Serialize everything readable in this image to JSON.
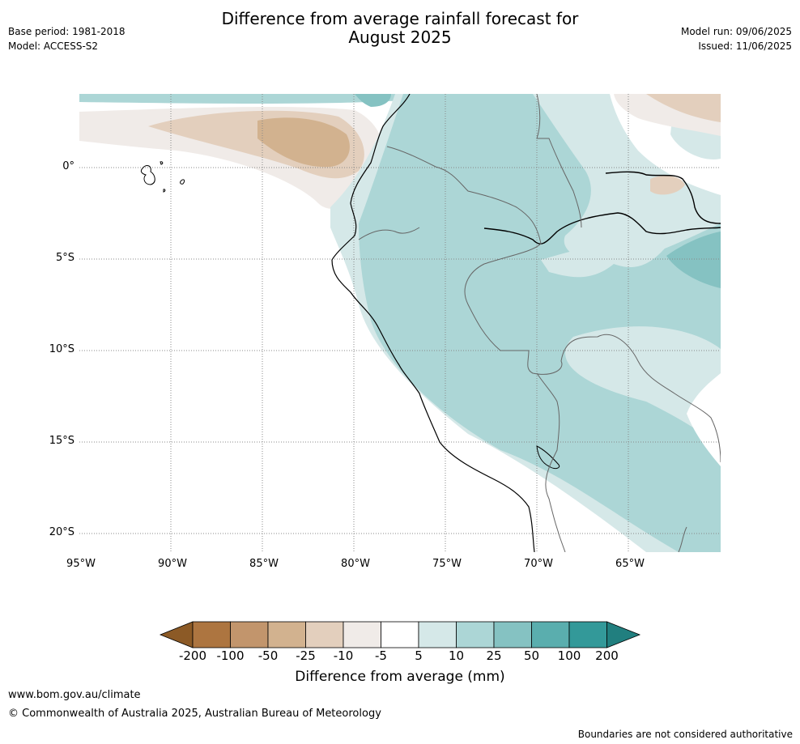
{
  "header": {
    "title_line1": "Difference from average rainfall forecast for",
    "title_line2": "August 2025",
    "base_period": "Base period: 1981-2018",
    "model": "Model: ACCESS-S2",
    "model_run": "Model run: 09/06/2025",
    "issued": "Issued: 11/06/2025"
  },
  "map": {
    "lat_labels": [
      "0°",
      "5°S",
      "10°S",
      "15°S",
      "20°S"
    ],
    "lon_labels": [
      "95°W",
      "90°W",
      "85°W",
      "80°W",
      "75°W",
      "70°W",
      "65°W"
    ]
  },
  "colorbar": {
    "title": "Difference from average (mm)",
    "tick_labels": [
      "-200",
      "-100",
      "-50",
      "-25",
      "-10",
      "-5",
      "5",
      "10",
      "25",
      "50",
      "100",
      "200"
    ],
    "colors": [
      "#8c5a26",
      "#ad7540",
      "#c2956c",
      "#d2b28f",
      "#e3cfbd",
      "#f0ebe8",
      "#ffffff",
      "#d5e8e8",
      "#acd6d6",
      "#85c2c2",
      "#5aaeae",
      "#339999",
      "#217f7f"
    ]
  },
  "footer": {
    "url": "www.bom.gov.au/climate",
    "copyright": "© Commonwealth of Australia 2025, Australian Bureau of Meteorology",
    "disclaimer": "Boundaries are not considered authoritative"
  }
}
